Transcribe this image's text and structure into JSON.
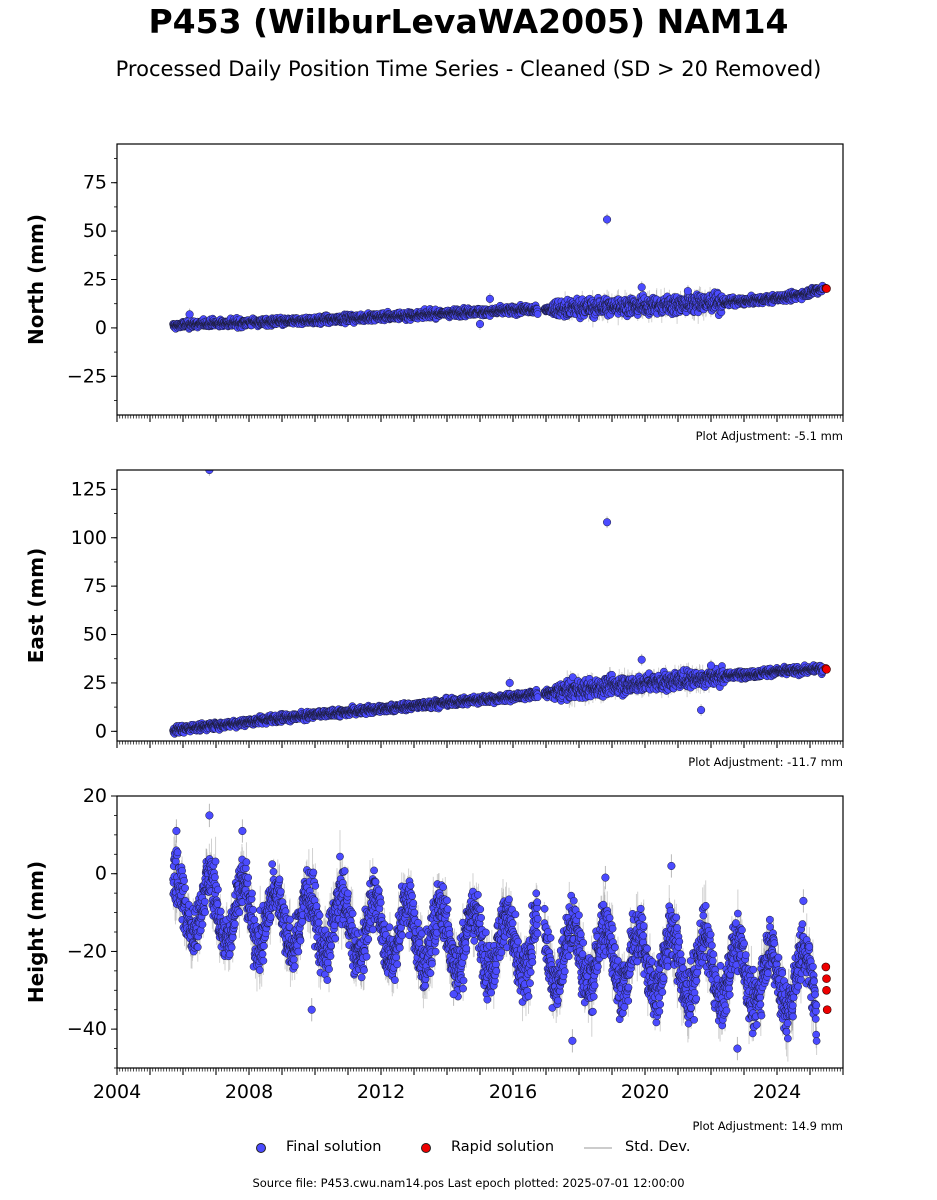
{
  "header": {
    "title": "P453 (WilburLevaWA2005) NAM14",
    "subtitle": "Processed Daily Position Time Series - Cleaned (SD > 20 Removed)"
  },
  "footer": {
    "source": "Source file: P453.cwu.nam14.pos  Last epoch plotted: 2025-07-01 12:00:00"
  },
  "legend": {
    "final_label": "Final solution",
    "rapid_label": "Rapid solution",
    "std_label": "Std. Dev."
  },
  "colors": {
    "final": "#4b4bff",
    "rapid": "#ee0000",
    "std": "#9a9a9a",
    "marker_edge": "#1a1a33"
  },
  "chart_data": [
    {
      "type": "scatter",
      "ylabel": "North (mm)",
      "adjustment": "Plot Adjustment: -5.1 mm",
      "xlim": [
        2004.0,
        2026.0
      ],
      "ylim": [
        -45,
        95
      ],
      "yticks": [
        -25,
        0,
        25,
        50,
        75
      ],
      "ytick_labels": [
        "−25",
        "0",
        "25",
        "50",
        "75"
      ],
      "xticks": [
        2004,
        2008,
        2012,
        2016,
        2020,
        2024
      ],
      "xtick_labels": [],
      "grid": false,
      "final_series": {
        "name": "Final solution",
        "x": [
          2005.7,
          2006.0,
          2006.5,
          2007.0,
          2007.5,
          2008.0,
          2008.5,
          2009.0,
          2009.5,
          2010.0,
          2010.5,
          2011.0,
          2011.5,
          2012.0,
          2012.5,
          2013.0,
          2013.5,
          2014.0,
          2014.5,
          2015.0,
          2015.5,
          2016.0,
          2016.5,
          2016.9,
          2017.2,
          2017.6,
          2018.0,
          2018.5,
          2019.0,
          2019.5,
          2020.0,
          2020.5,
          2021.0,
          2021.5,
          2022.0,
          2022.5,
          2023.0,
          2023.5,
          2024.0,
          2024.5,
          2025.0,
          2025.4
        ],
        "y": [
          1,
          1.5,
          2.2,
          2.4,
          2.5,
          2.8,
          3.0,
          3.3,
          3.6,
          4.0,
          4.4,
          4.8,
          5.3,
          5.8,
          6.2,
          6.7,
          7.2,
          7.6,
          8.0,
          8.3,
          8.7,
          9.0,
          9.3,
          9.7,
          9.8,
          10.2,
          10.6,
          10.5,
          11.0,
          11.2,
          11.8,
          11.5,
          12.0,
          12.5,
          13.0,
          13.2,
          13.8,
          14.5,
          15.2,
          16.2,
          18.5,
          20.5
        ]
      },
      "rapid_series": {
        "name": "Rapid solution",
        "x": [
          2025.48,
          2025.5
        ],
        "y": [
          20.5,
          20.3
        ]
      },
      "outliers": {
        "x": [
          2006.2,
          2015.0,
          2015.3,
          2018.85,
          2019.9,
          2021.3
        ],
        "y": [
          7,
          2,
          15,
          56,
          21,
          19
        ]
      }
    },
    {
      "type": "scatter",
      "ylabel": "East (mm)",
      "adjustment": "Plot Adjustment: -11.7 mm",
      "xlim": [
        2004.0,
        2026.0
      ],
      "ylim": [
        -5,
        135
      ],
      "yticks": [
        0,
        25,
        50,
        75,
        100,
        125
      ],
      "ytick_labels": [
        "0",
        "25",
        "50",
        "75",
        "100",
        "125"
      ],
      "xticks": [
        2004,
        2008,
        2012,
        2016,
        2020,
        2024
      ],
      "xtick_labels": [],
      "grid": false,
      "final_series": {
        "name": "Final solution",
        "x": [
          2005.7,
          2006.0,
          2006.5,
          2007.0,
          2007.5,
          2008.0,
          2008.5,
          2009.0,
          2009.5,
          2010.0,
          2010.5,
          2011.0,
          2011.5,
          2012.0,
          2012.5,
          2013.0,
          2013.5,
          2014.0,
          2014.5,
          2015.0,
          2015.5,
          2016.0,
          2016.5,
          2016.9,
          2017.2,
          2017.6,
          2018.0,
          2018.5,
          2019.0,
          2019.5,
          2020.0,
          2020.5,
          2021.0,
          2021.5,
          2022.0,
          2022.5,
          2023.0,
          2023.5,
          2024.0,
          2024.5,
          2025.0,
          2025.4
        ],
        "y": [
          0.5,
          1.3,
          2.2,
          3.0,
          4.0,
          5.0,
          6.0,
          7.0,
          7.7,
          8.5,
          9.3,
          10.0,
          10.8,
          11.5,
          12.3,
          13.2,
          14.0,
          14.8,
          15.5,
          16.3,
          17.0,
          17.8,
          18.6,
          19.3,
          20.0,
          21.0,
          22.0,
          22.5,
          23.5,
          24.0,
          25.0,
          25.5,
          26.5,
          27.0,
          28.0,
          28.7,
          29.5,
          30.0,
          30.8,
          31.3,
          31.8,
          32.2
        ]
      },
      "rapid_series": {
        "name": "Rapid solution",
        "x": [
          2025.48,
          2025.5
        ],
        "y": [
          32.5,
          32.0
        ]
      },
      "outliers": {
        "x": [
          2006.8,
          2015.9,
          2018.85,
          2019.9,
          2021.7,
          2022.0
        ],
        "y": [
          135,
          25,
          108,
          37,
          11,
          34
        ]
      }
    },
    {
      "type": "scatter",
      "ylabel": "Height (mm)",
      "adjustment": "Plot Adjustment: 14.9 mm",
      "xlim": [
        2004.0,
        2026.0
      ],
      "ylim": [
        -50,
        20
      ],
      "yticks": [
        -40,
        -20,
        0,
        20
      ],
      "ytick_labels": [
        "−40",
        "−20",
        "0",
        "20"
      ],
      "xticks": [
        2004,
        2008,
        2012,
        2016,
        2020,
        2024
      ],
      "xtick_labels": [
        "2004",
        "2008",
        "2012",
        "2016",
        "2020",
        "2024"
      ],
      "grid": false,
      "seasonal": {
        "mean_start": -8,
        "mean_end": -28,
        "amplitude": 8,
        "peak_phase": 0.8
      },
      "final_series": {
        "name": "Final solution",
        "x": [
          2005.7,
          2006.0,
          2006.5,
          2006.8,
          2007.2,
          2007.8,
          2008.2,
          2008.8,
          2009.2,
          2009.8,
          2010.2,
          2010.8,
          2011.2,
          2011.8,
          2012.2,
          2012.8,
          2013.2,
          2013.8,
          2014.2,
          2014.8,
          2015.2,
          2015.8,
          2016.2,
          2016.8,
          2017.2,
          2017.8,
          2018.2,
          2018.8,
          2019.2,
          2019.8,
          2020.2,
          2020.8,
          2021.2,
          2021.8,
          2022.2,
          2022.8,
          2023.2,
          2023.8,
          2024.2,
          2024.8,
          2025.2
        ],
        "y": [
          -5,
          -14,
          -12,
          -2,
          -18,
          -3,
          -20,
          -4,
          -22,
          -6,
          -23,
          -7,
          -24,
          -8,
          -25,
          -8,
          -26,
          -9,
          -26,
          -10,
          -27,
          -10,
          -28,
          -12,
          -30,
          -16,
          -31,
          -17,
          -32,
          -18,
          -32,
          -19,
          -33,
          -20,
          -33,
          -20,
          -34,
          -21,
          -34,
          -22,
          -35
        ]
      },
      "rapid_series": {
        "name": "Rapid solution",
        "x": [
          2025.48,
          2025.5,
          2025.5,
          2025.52
        ],
        "y": [
          -24,
          -27,
          -30,
          -35
        ]
      },
      "outliers": {
        "x": [
          2005.8,
          2006.8,
          2007.8,
          2009.9,
          2014.2,
          2017.8,
          2018.8,
          2020.8,
          2022.8,
          2024.8
        ],
        "y": [
          11,
          15,
          11,
          -35,
          -31,
          -43,
          -1,
          2,
          -45,
          -7
        ]
      }
    }
  ]
}
